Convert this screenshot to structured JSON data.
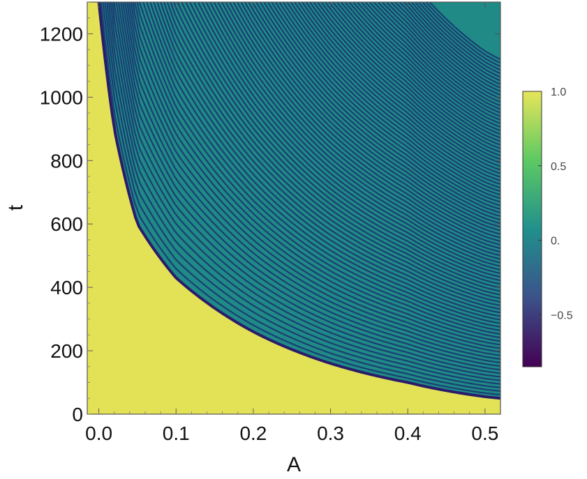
{
  "chart_data": {
    "type": "heatmap",
    "title": "",
    "xlabel": "A",
    "ylabel": "t",
    "xlim": [
      -0.015,
      0.52
    ],
    "ylim": [
      0,
      1300
    ],
    "x_ticks": [
      {
        "value": 0.0,
        "label": "0.0"
      },
      {
        "value": 0.1,
        "label": "0.1"
      },
      {
        "value": 0.2,
        "label": "0.2"
      },
      {
        "value": 0.3,
        "label": "0.3"
      },
      {
        "value": 0.4,
        "label": "0.4"
      },
      {
        "value": 0.5,
        "label": "0.5"
      }
    ],
    "y_ticks": [
      {
        "value": 0,
        "label": "0"
      },
      {
        "value": 200,
        "label": "200"
      },
      {
        "value": 400,
        "label": "400"
      },
      {
        "value": 600,
        "label": "600"
      },
      {
        "value": 800,
        "label": "800"
      },
      {
        "value": 1000,
        "label": "1000"
      },
      {
        "value": 1200,
        "label": "1200"
      }
    ],
    "colorbar": {
      "min": -0.85,
      "max": 1.0,
      "ticks": [
        {
          "value": 1.0,
          "label": "1.0"
        },
        {
          "value": 0.5,
          "label": "0.5"
        },
        {
          "value": 0.0,
          "label": "0."
        },
        {
          "value": -0.5,
          "label": "−0.5"
        }
      ],
      "colormap": [
        "#440154",
        "#3b528b",
        "#21908c",
        "#5dc963",
        "#e6e55a"
      ]
    },
    "boundary_curve": {
      "description_free": true,
      "A": [
        0.0,
        0.02,
        0.05,
        0.1,
        0.2,
        0.3,
        0.4,
        0.5,
        0.52
      ],
      "t": [
        1300,
        900,
        600,
        430,
        260,
        160,
        100,
        55,
        50
      ]
    },
    "background_value": 1.0
  }
}
